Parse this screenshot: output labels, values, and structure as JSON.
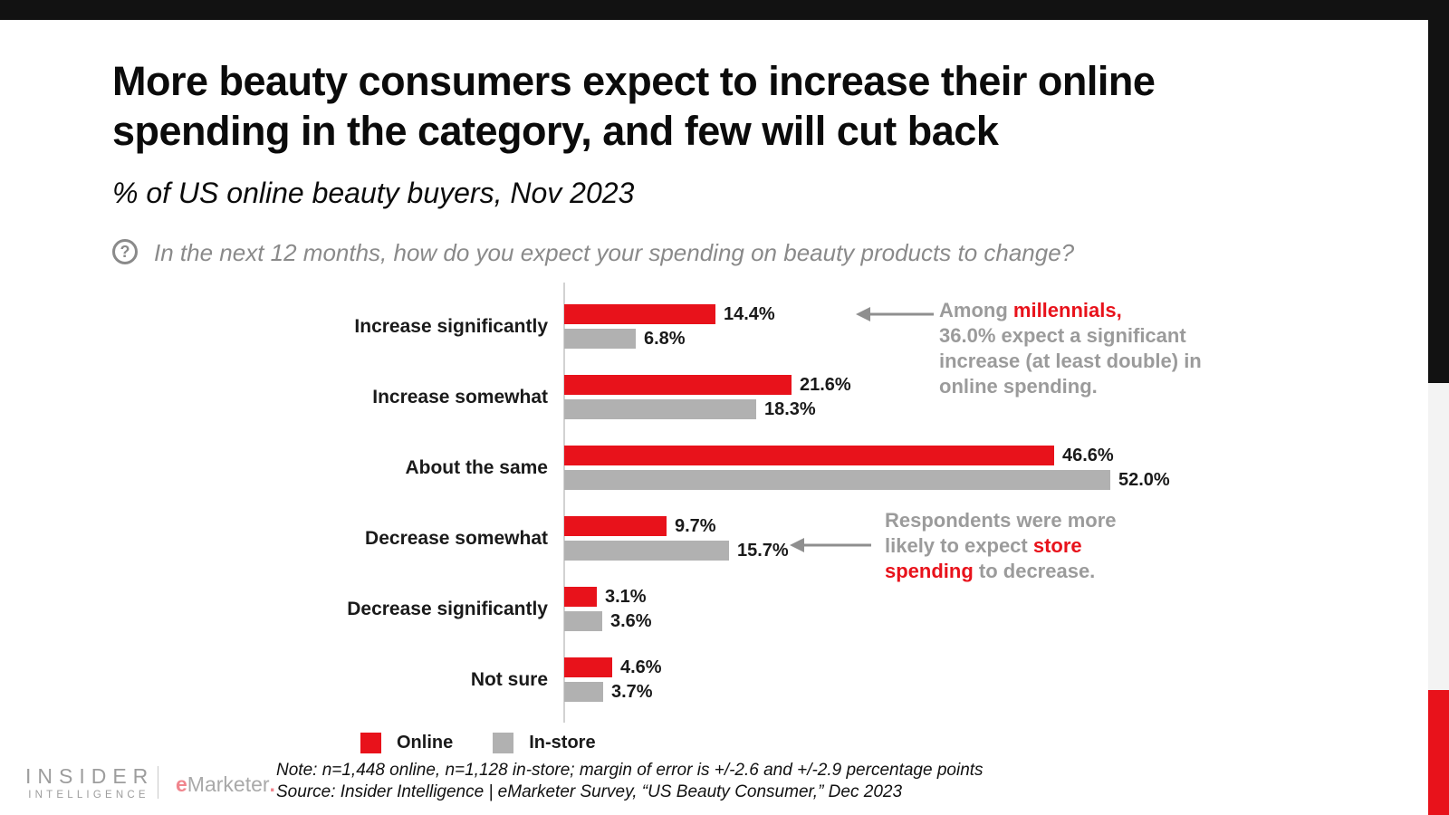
{
  "page": {
    "title": "More beauty consumers expect to increase their online\nspending in the category, and few will cut back",
    "subtitle": "% of US online beauty buyers, Nov 2023"
  },
  "question": {
    "icon_glyph": "?",
    "text": "In the next 12 months, how do you expect your spending on beauty products to change?"
  },
  "chart_data": {
    "type": "bar",
    "orientation": "horizontal",
    "title": "",
    "categories": [
      "Increase significantly",
      "Increase somewhat",
      "About the same",
      "Decrease somewhat",
      "Decrease significantly",
      "Not sure"
    ],
    "series": [
      {
        "name": "Online",
        "color": "#e8121b",
        "values": [
          14.4,
          21.6,
          46.6,
          9.7,
          3.1,
          4.6
        ]
      },
      {
        "name": "In-store",
        "color": "#b1b1b1",
        "values": [
          6.8,
          18.3,
          52.0,
          15.7,
          3.6,
          3.7
        ]
      }
    ],
    "value_suffix": "%",
    "xlim": [
      0,
      55
    ],
    "grid": false,
    "value_labels": "end-of-bar",
    "legend_position": "bottom-left"
  },
  "annotations": {
    "millennials": {
      "prefix": "Among ",
      "highlight": "millennials,",
      "rest": "\n36.0% expect a significant\nincrease (at least double) in\nonline spending."
    },
    "store": {
      "prefix": "Respondents were more\nlikely to expect ",
      "highlight": "store\nspending",
      "suffix": " to decrease."
    }
  },
  "legend": {
    "items": [
      {
        "label": "Online",
        "color": "#e8121b"
      },
      {
        "label": "In-store",
        "color": "#b1b1b1"
      }
    ]
  },
  "notes": {
    "note": "Note: n=1,448 online, n=1,128 in-store; margin of error is +/-2.6 and +/-2.9 percentage points",
    "source": "Source: Insider Intelligence | eMarketer Survey, “US Beauty Consumer,” Dec 2023"
  },
  "footer": {
    "brand_primary_line1": "INSIDER",
    "brand_primary_line2": "INTELLIGENCE",
    "brand_secondary_e": "e",
    "brand_secondary_rest": "Marketer",
    "brand_secondary_dot": "."
  },
  "colors": {
    "online_red": "#e8121b",
    "instore_gray": "#b1b1b1",
    "annotation_gray": "#9b9b9b",
    "top_bar_black": "#121212",
    "accent_strip_gray": "#f3f3f3",
    "accent_strip_red": "#e8121b"
  }
}
